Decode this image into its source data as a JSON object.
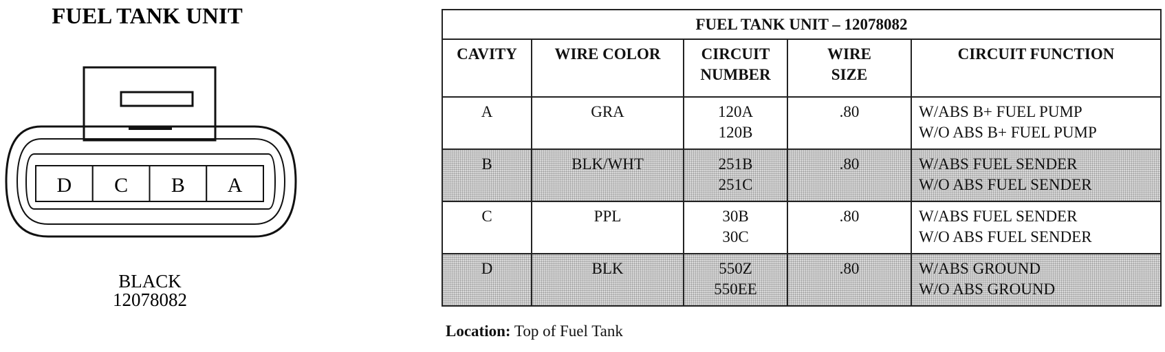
{
  "diagram": {
    "title": "FUEL TANK UNIT",
    "cavities": [
      "D",
      "C",
      "B",
      "A"
    ],
    "color": "BLACK",
    "part_number": "12078082"
  },
  "table": {
    "title": "FUEL TANK UNIT – 12078082",
    "headers": [
      [
        "CAVITY"
      ],
      [
        "WIRE COLOR"
      ],
      [
        "CIRCUIT",
        "NUMBER"
      ],
      [
        "WIRE",
        "SIZE"
      ],
      [
        "CIRCUIT FUNCTION"
      ]
    ],
    "rows": [
      {
        "cavity": "A",
        "wire_color": "GRA",
        "circuit_numbers": [
          "120A",
          "120B"
        ],
        "wire_size": ".80",
        "functions": [
          "W/ABS B+ FUEL PUMP",
          "W/O ABS B+ FUEL PUMP"
        ]
      },
      {
        "cavity": "B",
        "wire_color": "BLK/WHT",
        "circuit_numbers": [
          "251B",
          "251C"
        ],
        "wire_size": ".80",
        "functions": [
          "W/ABS FUEL SENDER",
          "W/O ABS FUEL SENDER"
        ]
      },
      {
        "cavity": "C",
        "wire_color": "PPL",
        "circuit_numbers": [
          "30B",
          "30C"
        ],
        "wire_size": ".80",
        "functions": [
          "W/ABS FUEL SENDER",
          "W/O ABS FUEL SENDER"
        ]
      },
      {
        "cavity": "D",
        "wire_color": "BLK",
        "circuit_numbers": [
          "550Z",
          "550EE"
        ],
        "wire_size": ".80",
        "functions": [
          "W/ABS GROUND",
          "W/O ABS GROUND"
        ]
      }
    ]
  },
  "location": {
    "label": "Location:",
    "text": "Top of Fuel Tank"
  }
}
